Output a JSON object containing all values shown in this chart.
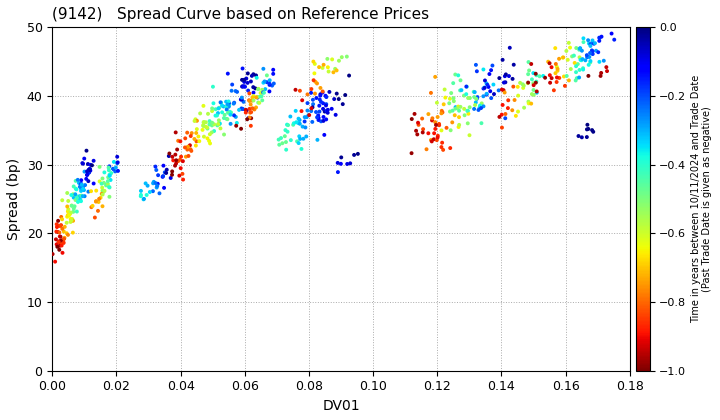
{
  "title": "(9142)   Spread Curve based on Reference Prices",
  "xlabel": "DV01",
  "ylabel": "Spread (bp)",
  "colorbar_label_line1": "Time in years between 10/11/2024 and Trade Date",
  "colorbar_label_line2": "(Past Trade Date is given as negative)",
  "xlim": [
    0.0,
    0.18
  ],
  "ylim": [
    0,
    50
  ],
  "xticks": [
    0.0,
    0.02,
    0.04,
    0.06,
    0.08,
    0.1,
    0.12,
    0.14,
    0.16,
    0.18
  ],
  "yticks": [
    0,
    10,
    20,
    30,
    40,
    50
  ],
  "cmap": "jet_r",
  "vmin": -1.0,
  "vmax": 0.0,
  "colorbar_ticks": [
    0.0,
    -0.2,
    -0.4,
    -0.6,
    -0.8,
    -1.0
  ],
  "marker_size": 8,
  "background": "#ffffff",
  "grid_color": "#aaaaaa",
  "grid_linestyle": ":"
}
